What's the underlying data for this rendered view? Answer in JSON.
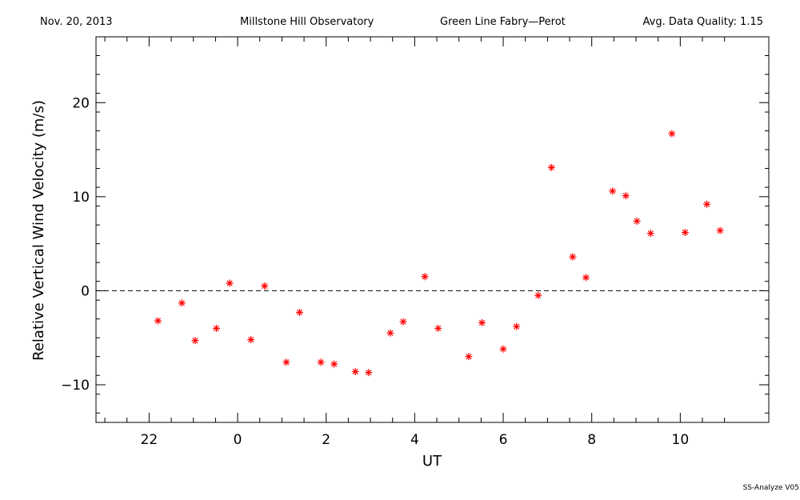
{
  "header": {
    "date": "Nov. 20, 2013",
    "observatory": "Millstone Hill Observatory",
    "instrument": "Green Line Fabry—Perot",
    "quality": "Avg. Data Quality: 1.15"
  },
  "footer": {
    "version": "SS-Analyze V05"
  },
  "colors": {
    "points": "#ff0000",
    "axis": "#000000"
  },
  "chart_data": {
    "type": "scatter",
    "xlabel": "UT",
    "ylabel": "Relative Vertical Wind Velocity (m/s)",
    "xlim": [
      -3.2,
      12
    ],
    "ylim": [
      -14,
      27
    ],
    "x_ticks": [
      22,
      0,
      2,
      4,
      6,
      8,
      10
    ],
    "y_ticks": [
      -10,
      0,
      10,
      20
    ],
    "reference_line": 0,
    "marker": "asterisk",
    "x": [
      -1.8,
      -1.26,
      -0.96,
      -0.48,
      -0.18,
      0.3,
      0.61,
      1.1,
      1.4,
      1.88,
      2.18,
      2.66,
      2.96,
      3.45,
      3.74,
      4.23,
      4.53,
      5.22,
      5.52,
      6.0,
      6.3,
      6.79,
      7.09,
      7.57,
      7.87,
      8.47,
      8.77,
      9.02,
      9.33,
      9.81,
      10.11,
      10.6,
      10.9
    ],
    "values": [
      -3.2,
      -1.3,
      -5.3,
      -4.0,
      0.8,
      -5.2,
      0.5,
      -7.6,
      -2.3,
      -7.6,
      -7.8,
      -8.6,
      -8.7,
      -4.5,
      -3.3,
      1.5,
      -4.0,
      -7.0,
      -3.4,
      -6.2,
      -3.8,
      -0.5,
      13.1,
      3.6,
      1.4,
      10.6,
      10.1,
      7.4,
      6.1,
      16.7,
      6.2,
      9.2,
      6.4
    ]
  }
}
